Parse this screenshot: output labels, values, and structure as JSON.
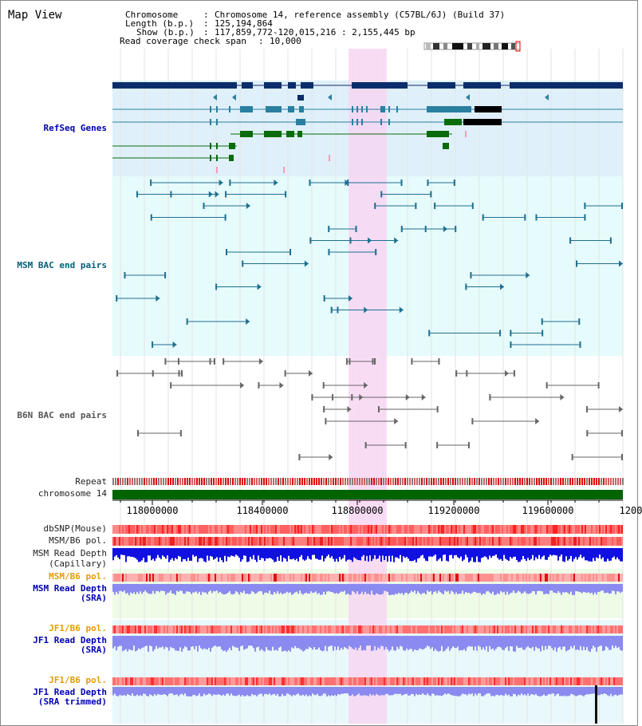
{
  "title": "Map View",
  "info": {
    "chromosome_key": "Chromosome",
    "chromosome_value": "Chromosome 14, reference assembly (C57BL/6J) (Build 37)",
    "length_key": "Length (b.p.)",
    "length_value": "125,194,864",
    "show_key": "Show (b.p.)",
    "show_value": "117,859,772-120,015,216 : 2,155,445 bp",
    "span_key": "Read coverage check span",
    "span_value": "10,000"
  },
  "tracks": {
    "refseq": "RefSeq Genes",
    "msm_bac": "MSM BAC end pairs",
    "b6n_bac": "B6N BAC end pairs",
    "repeat": "Repeat",
    "chromosome": "chromosome 14",
    "dbsnp": "dbSNP(Mouse)",
    "msm_pol_1": "MSM/B6 pol.",
    "msm_depth_cap_1": "MSM Read Depth",
    "msm_depth_cap_2": "(Capillary)",
    "msm_pol_2": "MSM/B6 pol.",
    "msm_depth_sra_1": "MSM Read Depth",
    "msm_depth_sra_2": "(SRA)",
    "jf1_pol_1": "JF1/B6 pol.",
    "jf1_depth_sra_1": "JF1 Read Depth",
    "jf1_depth_sra_2": "(SRA)",
    "jf1_pol_2": "JF1/B6 pol.",
    "jf1_depth_trim_1": "JF1 Read Depth",
    "jf1_depth_trim_2": "(SRA trimmed)"
  },
  "axis": {
    "ticks": [
      "118000000",
      "118400000",
      "118800000",
      "119200000",
      "119600000",
      "1200"
    ]
  },
  "colors": {
    "highlight": "#f7d6f2",
    "refseq_bg": "#dff0fa",
    "msm_bg": "#e6fbfb",
    "gene_navy": "#0c2d6b",
    "gene_teal": "#2a7fa0",
    "gene_green": "#0a6b0a",
    "bac_teal": "#1d6f92",
    "bac_gray": "#666666",
    "chrom_green": "#006400",
    "snp_red": "#ff6666",
    "depth_blue": "#1010e0",
    "depth_lilac": "#8a8af0"
  }
}
